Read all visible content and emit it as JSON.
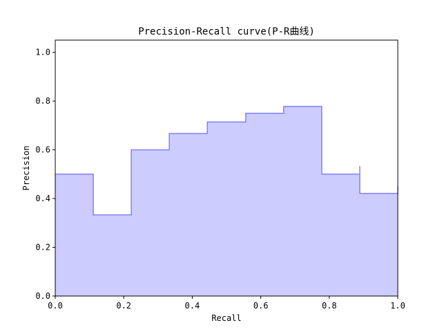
{
  "chart_data": {
    "type": "area",
    "subtype": "step",
    "title": "Precision-Recall curve(P-R曲线)",
    "xlabel": "Recall",
    "ylabel": "Precision",
    "xlim": [
      0.0,
      1.0
    ],
    "ylim": [
      0.0,
      1.05
    ],
    "xticks": [
      "0.0",
      "0.2",
      "0.4",
      "0.6",
      "0.8",
      "1.0"
    ],
    "yticks": [
      "0.0",
      "0.2",
      "0.4",
      "0.6",
      "0.8",
      "1.0"
    ],
    "grid": false,
    "colors": {
      "fill": "#ccccff",
      "line": "#8080f8"
    },
    "points": {
      "recall": [
        0.0,
        0.111,
        0.111,
        0.222,
        0.333,
        0.444,
        0.556,
        0.667,
        0.778,
        0.778,
        0.889,
        0.889,
        1.0
      ],
      "precision": [
        0.5,
        0.5,
        0.333,
        0.6,
        0.667,
        0.714,
        0.75,
        0.778,
        0.778,
        0.5,
        0.533,
        0.421,
        0.45
      ]
    }
  }
}
